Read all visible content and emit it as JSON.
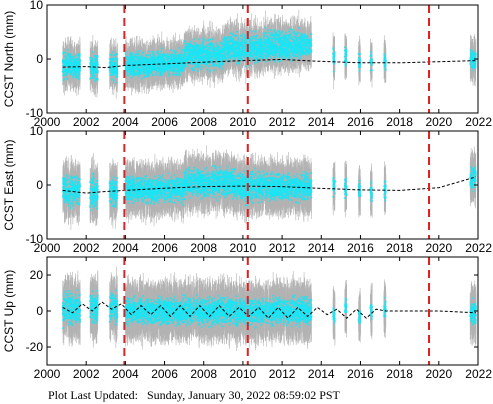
{
  "footer": {
    "label": "Plot Last Updated:",
    "timestamp": "Sunday, January 30, 2022 08:59:02 PST"
  },
  "colors": {
    "observations": "#19e5f5",
    "error_bars": "#b3b3b3",
    "model": "#000000",
    "events": "#e02020",
    "frame": "#000000"
  },
  "chart_data": [
    {
      "type": "scatter",
      "ylabel": "CCST North (mm)",
      "xlim": [
        2000,
        2022
      ],
      "ylim": [
        -10,
        10
      ],
      "x_ticks": [
        2000,
        2002,
        2004,
        2006,
        2008,
        2010,
        2012,
        2014,
        2016,
        2018,
        2020,
        2022
      ],
      "y_ticks": [
        -10,
        0,
        10
      ],
      "event_lines": [
        2003.95,
        2010.25,
        2019.5
      ],
      "observation_error_mm": 2.5,
      "model": {
        "x": [
          2000.8,
          2002,
          2003,
          2004,
          2006,
          2008,
          2010,
          2012,
          2013.8,
          2016,
          2018,
          2020,
          2021.9
        ],
        "y": [
          -1.5,
          -1.4,
          -1.6,
          -1.2,
          -0.9,
          -0.6,
          -0.3,
          -0.1,
          -0.4,
          -0.7,
          -0.7,
          -0.5,
          -0.3
        ]
      },
      "observations": {
        "segments": [
          {
            "start": 2000.8,
            "end": 2001.7,
            "y": -1.2,
            "spread": 2.0
          },
          {
            "start": 2002.2,
            "end": 2002.6,
            "y": -1.4,
            "spread": 2.0
          },
          {
            "start": 2003.2,
            "end": 2003.6,
            "y": -1.6,
            "spread": 2.0
          },
          {
            "start": 2004.0,
            "end": 2005.4,
            "y": -1.1,
            "spread": 1.8
          },
          {
            "start": 2005.4,
            "end": 2007.0,
            "y": -0.8,
            "spread": 1.8
          },
          {
            "start": 2007.0,
            "end": 2009.0,
            "y": 0.8,
            "spread": 2.2
          },
          {
            "start": 2009.0,
            "end": 2011.0,
            "y": 2.0,
            "spread": 2.2
          },
          {
            "start": 2011.0,
            "end": 2013.5,
            "y": 2.5,
            "spread": 2.2
          },
          {
            "start": 2014.6,
            "end": 2014.7,
            "y": 0.0,
            "spread": 1.5
          },
          {
            "start": 2015.2,
            "end": 2015.3,
            "y": 0.3,
            "spread": 1.5
          },
          {
            "start": 2015.9,
            "end": 2016.0,
            "y": -0.4,
            "spread": 1.5
          },
          {
            "start": 2016.5,
            "end": 2016.6,
            "y": -0.6,
            "spread": 1.5
          },
          {
            "start": 2017.2,
            "end": 2017.3,
            "y": -0.5,
            "spread": 1.5
          },
          {
            "start": 2021.6,
            "end": 2021.9,
            "y": 0.0,
            "spread": 1.5
          }
        ]
      }
    },
    {
      "type": "scatter",
      "ylabel": "CCST East (mm)",
      "xlim": [
        2000,
        2022
      ],
      "ylim": [
        -10,
        10
      ],
      "x_ticks": [
        2000,
        2002,
        2004,
        2006,
        2008,
        2010,
        2012,
        2014,
        2016,
        2018,
        2020,
        2022
      ],
      "y_ticks": [
        -10,
        0,
        10
      ],
      "event_lines": [
        2003.95,
        2010.25,
        2019.5
      ],
      "observation_error_mm": 3.0,
      "model": {
        "x": [
          2000.8,
          2002,
          2003,
          2004,
          2006,
          2008,
          2010,
          2012,
          2013.8,
          2016,
          2018,
          2020,
          2021.9
        ],
        "y": [
          -1.0,
          -1.5,
          -1.2,
          -1.0,
          -0.6,
          -0.3,
          -0.2,
          -0.3,
          -0.6,
          -0.9,
          -1.0,
          -0.5,
          1.5
        ]
      },
      "observations": {
        "segments": [
          {
            "start": 2000.8,
            "end": 2001.7,
            "y": -1.0,
            "spread": 2.5
          },
          {
            "start": 2002.2,
            "end": 2002.6,
            "y": -1.5,
            "spread": 2.5
          },
          {
            "start": 2003.2,
            "end": 2003.6,
            "y": -1.2,
            "spread": 2.5
          },
          {
            "start": 2004.0,
            "end": 2007.0,
            "y": -0.8,
            "spread": 2.0
          },
          {
            "start": 2007.0,
            "end": 2009.5,
            "y": 0.5,
            "spread": 2.2
          },
          {
            "start": 2009.5,
            "end": 2011.5,
            "y": -0.3,
            "spread": 2.2
          },
          {
            "start": 2011.5,
            "end": 2013.5,
            "y": -0.4,
            "spread": 2.0
          },
          {
            "start": 2014.6,
            "end": 2014.7,
            "y": -0.2,
            "spread": 1.5
          },
          {
            "start": 2015.2,
            "end": 2015.3,
            "y": -0.6,
            "spread": 1.5
          },
          {
            "start": 2015.9,
            "end": 2016.0,
            "y": -1.0,
            "spread": 1.5
          },
          {
            "start": 2016.5,
            "end": 2016.6,
            "y": -1.2,
            "spread": 1.5
          },
          {
            "start": 2017.2,
            "end": 2017.3,
            "y": -1.0,
            "spread": 1.5
          },
          {
            "start": 2021.6,
            "end": 2021.9,
            "y": 1.5,
            "spread": 1.8
          }
        ]
      }
    },
    {
      "type": "scatter",
      "ylabel": "CCST Up (mm)",
      "xlim": [
        2000,
        2022
      ],
      "ylim": [
        -30,
        30
      ],
      "x_ticks": [
        2000,
        2002,
        2004,
        2006,
        2008,
        2010,
        2012,
        2014,
        2016,
        2018,
        2020,
        2022
      ],
      "y_ticks": [
        -20,
        0,
        20
      ],
      "event_lines": [
        2003.95,
        2010.25,
        2019.5
      ],
      "observation_error_mm": 10.0,
      "model": {
        "x": [
          2000.8,
          2001.3,
          2001.8,
          2002.3,
          2002.8,
          2003.3,
          2003.8,
          2004.3,
          2004.8,
          2005.3,
          2005.8,
          2006.3,
          2006.8,
          2007.3,
          2007.8,
          2008.3,
          2008.8,
          2009.3,
          2009.8,
          2010.3,
          2010.8,
          2011.3,
          2011.8,
          2012.3,
          2012.8,
          2013.3,
          2013.8,
          2014.3,
          2014.8,
          2015.3,
          2015.8,
          2016.3,
          2016.8,
          2017.3,
          2020.0,
          2021.9
        ],
        "y": [
          2,
          -1,
          4,
          0,
          5,
          1,
          4,
          -2,
          3,
          -2,
          3,
          -3,
          3,
          -3,
          3,
          -3,
          3,
          -3,
          2,
          -3,
          2,
          -4,
          2,
          -4,
          2,
          -3,
          2,
          -2,
          1,
          -4,
          1,
          -4,
          1,
          0,
          0,
          -1
        ]
      },
      "observations": {
        "segments": [
          {
            "start": 2000.8,
            "end": 2001.7,
            "y": 1.0,
            "spread": 7.0
          },
          {
            "start": 2002.2,
            "end": 2002.6,
            "y": 2.0,
            "spread": 7.0
          },
          {
            "start": 2003.2,
            "end": 2003.6,
            "y": 2.0,
            "spread": 7.0
          },
          {
            "start": 2004.0,
            "end": 2013.5,
            "y": 0.0,
            "spread": 6.0
          },
          {
            "start": 2014.6,
            "end": 2014.7,
            "y": -2.0,
            "spread": 4.0
          },
          {
            "start": 2015.2,
            "end": 2015.3,
            "y": 2.0,
            "spread": 4.0
          },
          {
            "start": 2015.9,
            "end": 2016.0,
            "y": -3.0,
            "spread": 4.0
          },
          {
            "start": 2016.5,
            "end": 2016.6,
            "y": 0.0,
            "spread": 4.0
          },
          {
            "start": 2017.2,
            "end": 2017.3,
            "y": 1.0,
            "spread": 4.0
          },
          {
            "start": 2021.6,
            "end": 2021.9,
            "y": -1.0,
            "spread": 5.0
          }
        ]
      }
    }
  ]
}
